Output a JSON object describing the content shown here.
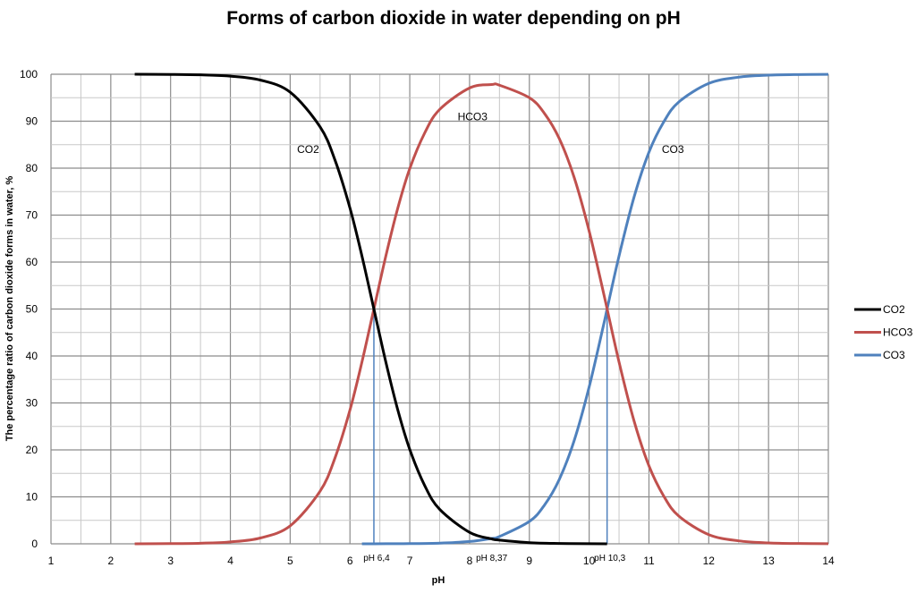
{
  "chart_data": {
    "type": "line",
    "title": "Forms of carbon dioxide in water depending on pH",
    "xlabel": "pH",
    "ylabel": "The percentage ratio of carbon dioxide forms in water, %",
    "xlim": [
      1,
      14
    ],
    "ylim": [
      0,
      100
    ],
    "x_ticks": [
      "1",
      "2",
      "3",
      "4",
      "5",
      "6",
      "7",
      "8",
      "9",
      "10",
      "11",
      "12",
      "13",
      "14"
    ],
    "y_ticks": [
      "0",
      "10",
      "20",
      "30",
      "40",
      "50",
      "60",
      "70",
      "80",
      "90",
      "100"
    ],
    "grid": true,
    "legend_position": "right",
    "series": [
      {
        "name": "CO2",
        "color": "#000000",
        "x": [
          2.4,
          3,
          3.5,
          4,
          4.5,
          5,
          5.5,
          5.75,
          6,
          6.2,
          6.4,
          6.6,
          6.8,
          7,
          7.25,
          7.5,
          8,
          8.37,
          8.5,
          9,
          9.5,
          10,
          10.3
        ],
        "y": [
          99.99,
          99.96,
          99.87,
          99.6,
          98.76,
          96.17,
          88.8,
          81.7,
          71.5,
          61.3,
          50,
          38.7,
          28.5,
          20.1,
          12.4,
          7.34,
          2.44,
          1.05,
          0.78,
          0.24,
          0.07,
          0.02,
          0.01
        ]
      },
      {
        "name": "HCO3",
        "color": "#c0504d",
        "x": [
          2.4,
          3,
          3.5,
          4,
          4.5,
          5,
          5.5,
          5.75,
          6,
          6.2,
          6.4,
          6.6,
          6.8,
          7,
          7.25,
          7.5,
          8,
          8.37,
          8.5,
          9,
          9.25,
          9.5,
          9.75,
          10,
          10.25,
          10.5,
          10.75,
          11,
          11.25,
          11.5,
          12,
          12.5,
          13,
          13.5,
          14
        ],
        "y": [
          0.01,
          0.04,
          0.13,
          0.4,
          1.24,
          3.83,
          11.2,
          18.3,
          28.5,
          38.7,
          50,
          61.3,
          71.5,
          79.9,
          87.5,
          92.5,
          97.07,
          97.8,
          97.67,
          95.0,
          91.7,
          86.3,
          78.0,
          66.6,
          52.9,
          38.7,
          26.2,
          16.6,
          10.1,
          5.9,
          1.96,
          0.63,
          0.2,
          0.06,
          0.02
        ]
      },
      {
        "name": "CO3",
        "color": "#4f81bd",
        "x": [
          6.2,
          6.4,
          6.8,
          7,
          7.5,
          8,
          8.37,
          8.5,
          9,
          9.25,
          9.5,
          9.75,
          10,
          10.25,
          10.3,
          10.5,
          10.75,
          11,
          11.25,
          11.5,
          12,
          12.5,
          13,
          13.5,
          14
        ],
        "y": [
          0,
          0.01,
          0.03,
          0.04,
          0.15,
          0.49,
          1.15,
          1.55,
          4.76,
          8.2,
          13.7,
          22.0,
          33.4,
          47.1,
          50,
          61.3,
          73.8,
          83.4,
          89.9,
          94.1,
          98.04,
          99.37,
          99.8,
          99.94,
          99.98
        ]
      }
    ],
    "markers": [
      {
        "label": "pH 6,4",
        "x": 6.4,
        "y_top": 50,
        "color": "#4f81bd"
      },
      {
        "label": "pH 8,37",
        "x": 8.37
      },
      {
        "label": "pH 10,3",
        "x": 10.3,
        "y_top": 50,
        "color": "#4f81bd"
      }
    ],
    "curve_labels": [
      {
        "text": "CO2",
        "x": 5.3,
        "y": 84
      },
      {
        "text": "HCO3",
        "x": 8.05,
        "y": 91
      },
      {
        "text": "CO3",
        "x": 11.4,
        "y": 84
      }
    ]
  }
}
